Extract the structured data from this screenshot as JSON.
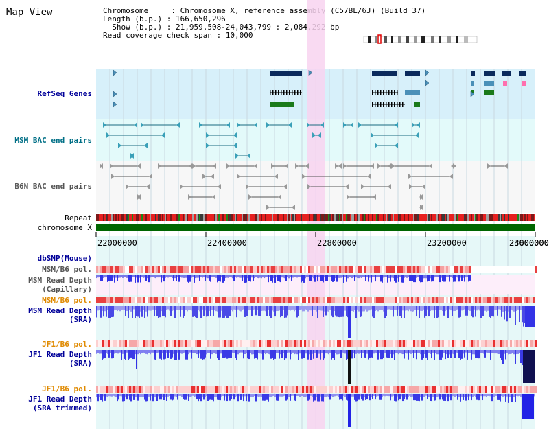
{
  "title": "Map View",
  "info": {
    "line1": "Chromosome     : Chromosome X, reference assembly (C57BL/6J) (Build 37)",
    "line2": "Length (b.p.) : 166,650,296",
    "line3": "  Show (b.p.) : 21,959,508-24,043,799 : 2,084,292 bp",
    "line4": "Read coverage check span : 10,000"
  },
  "tracks": {
    "refseq": "RefSeq Genes",
    "msm_bac": "MSM BAC end pairs",
    "b6n_bac": "B6N BAC end pairs",
    "repeat": "Repeat",
    "chromosome": "chromosome X",
    "dbsnp": "dbSNP(Mouse)",
    "msm_pol1": "MSM/B6 pol.",
    "msm_depth_cap": "MSM Read Depth\n(Capillary)",
    "msm_pol2": "MSM/B6 pol.",
    "msm_depth_sra": "MSM Read Depth\n(SRA)",
    "jf1_pol1": "JF1/B6 pol.",
    "jf1_depth_sra": "JF1 Read Depth\n(SRA)",
    "jf1_pol2": "JF1/B6 pol.",
    "jf1_depth_trim": "JF1 Read Depth\n(SRA trimmed)"
  },
  "axis": {
    "ticks": [
      "22000000",
      "22400000",
      "22800000",
      "23200000",
      "23600000",
      "24000000"
    ]
  },
  "colors": {
    "refseq_bg": "#d7f0fa",
    "msm_bac_bg": "#e3fafa",
    "b6n_bg": "#f7f7f7",
    "highlight": "#f8d4f0",
    "chromosome": "#006600",
    "depth_dark": "#3333e6",
    "depth_light": "#8c8cf0"
  }
}
